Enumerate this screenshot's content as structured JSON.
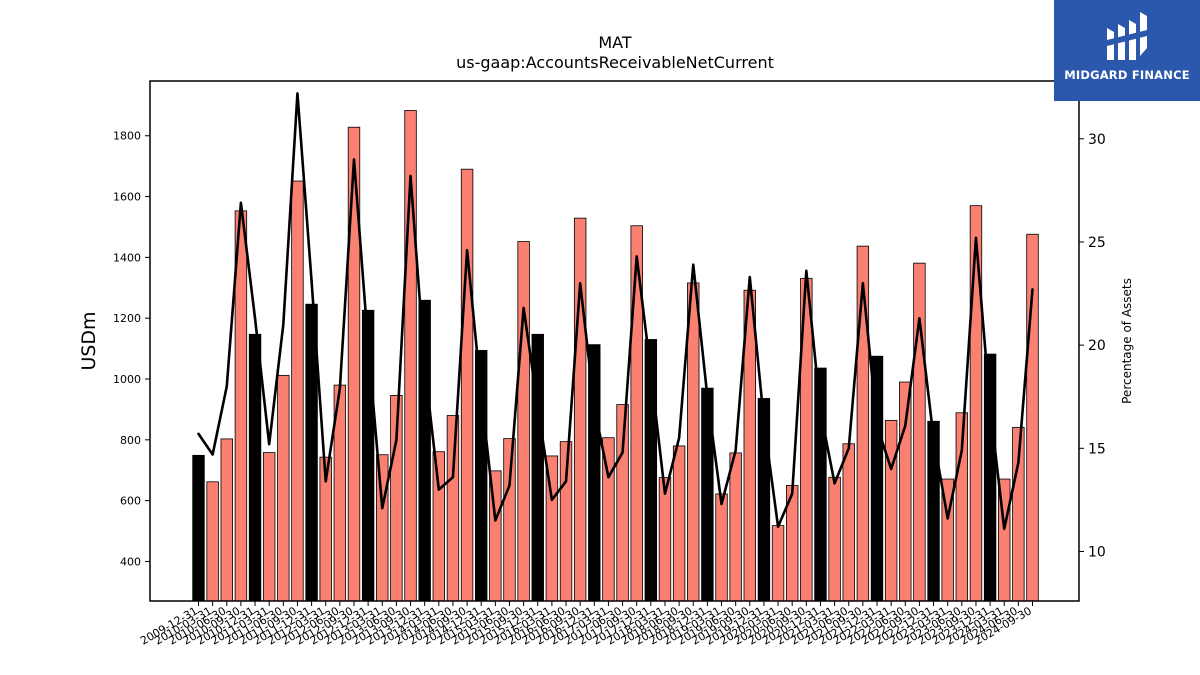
{
  "chart_data": {
    "type": "bar+line",
    "title": "MAT",
    "subtitle": "us-gaap:AccountsReceivableNetCurrent",
    "ylabel": "USDm",
    "y2label": "Percentage of Assets",
    "ylim": [
      270,
      1980
    ],
    "y2lim": [
      7.6,
      32.8
    ],
    "yticks": [
      400,
      600,
      800,
      1000,
      1200,
      1400,
      1600,
      1800
    ],
    "y2ticks": [
      10,
      15,
      20,
      25,
      30
    ],
    "x": [
      "2009-12-31",
      "2010-03-31",
      "2010-06-30",
      "2010-09-30",
      "2010-12-31",
      "2011-03-31",
      "2011-06-30",
      "2011-09-30",
      "2011-12-31",
      "2012-03-31",
      "2012-06-30",
      "2012-09-30",
      "2012-12-31",
      "2013-03-31",
      "2013-06-30",
      "2013-09-30",
      "2013-12-31",
      "2014-03-31",
      "2014-06-30",
      "2014-09-30",
      "2014-12-31",
      "2015-03-31",
      "2015-06-30",
      "2015-09-30",
      "2015-12-31",
      "2016-03-31",
      "2016-06-30",
      "2016-09-30",
      "2016-12-31",
      "2017-03-31",
      "2017-06-30",
      "2017-09-30",
      "2017-12-31",
      "2018-03-31",
      "2018-06-30",
      "2018-09-30",
      "2018-12-31",
      "2019-03-31",
      "2019-06-30",
      "2019-09-30",
      "2019-12-31",
      "2020-03-31",
      "2020-06-30",
      "2020-09-30",
      "2020-12-31",
      "2021-03-31",
      "2021-06-30",
      "2021-09-30",
      "2021-12-31",
      "2022-03-31",
      "2022-06-30",
      "2022-09-30",
      "2022-12-31",
      "2023-03-31",
      "2023-06-30",
      "2023-09-30",
      "2023-12-31",
      "2024-03-31",
      "2024-06-30",
      "2024-09-30"
    ],
    "series": [
      {
        "type": "bar",
        "values": [
          749,
          662,
          803,
          1553,
          1147,
          758,
          1012,
          1651,
          1246,
          743,
          980,
          1828,
          1226,
          751,
          946,
          1883,
          1259,
          761,
          880,
          1690,
          1094,
          698,
          804,
          1452,
          1147,
          747,
          794,
          1529,
          1113,
          807,
          916,
          1504,
          1130,
          676,
          780,
          1316,
          970,
          622,
          757,
          1292,
          936,
          518,
          650,
          1331,
          1036,
          677,
          787,
          1437,
          1075,
          864,
          990,
          1381,
          861,
          671,
          889,
          1570,
          1082,
          671,
          841,
          1476
        ]
      },
      {
        "type": "line",
        "values": [
          15.7,
          14.7,
          18.0,
          26.9,
          21.3,
          15.2,
          21.0,
          32.2,
          23.1,
          13.4,
          17.9,
          29.0,
          20.0,
          12.1,
          15.4,
          28.2,
          19.0,
          13.0,
          13.6,
          24.6,
          17.6,
          11.5,
          13.2,
          21.8,
          17.0,
          12.5,
          13.4,
          23.0,
          17.0,
          13.6,
          14.8,
          24.3,
          18.7,
          12.8,
          15.5,
          23.9,
          17.5,
          12.3,
          14.9,
          23.3,
          16.3,
          11.2,
          12.8,
          23.6,
          16.8,
          13.3,
          15.0,
          23.0,
          16.1,
          14.0,
          16.1,
          21.3,
          15.5,
          11.6,
          14.9,
          25.2,
          17.0,
          11.1,
          14.3,
          22.7
        ]
      }
    ],
    "colors": {
      "bar_q4": "#000000",
      "bar_other": "#fa8072",
      "bar_edge": "#000000",
      "line": "#000000"
    },
    "grid": false,
    "legend": "none"
  },
  "logo": {
    "text": "MIDGARD FINANCE",
    "icon": "midgard-logo-icon",
    "background": "#2b57ad"
  }
}
